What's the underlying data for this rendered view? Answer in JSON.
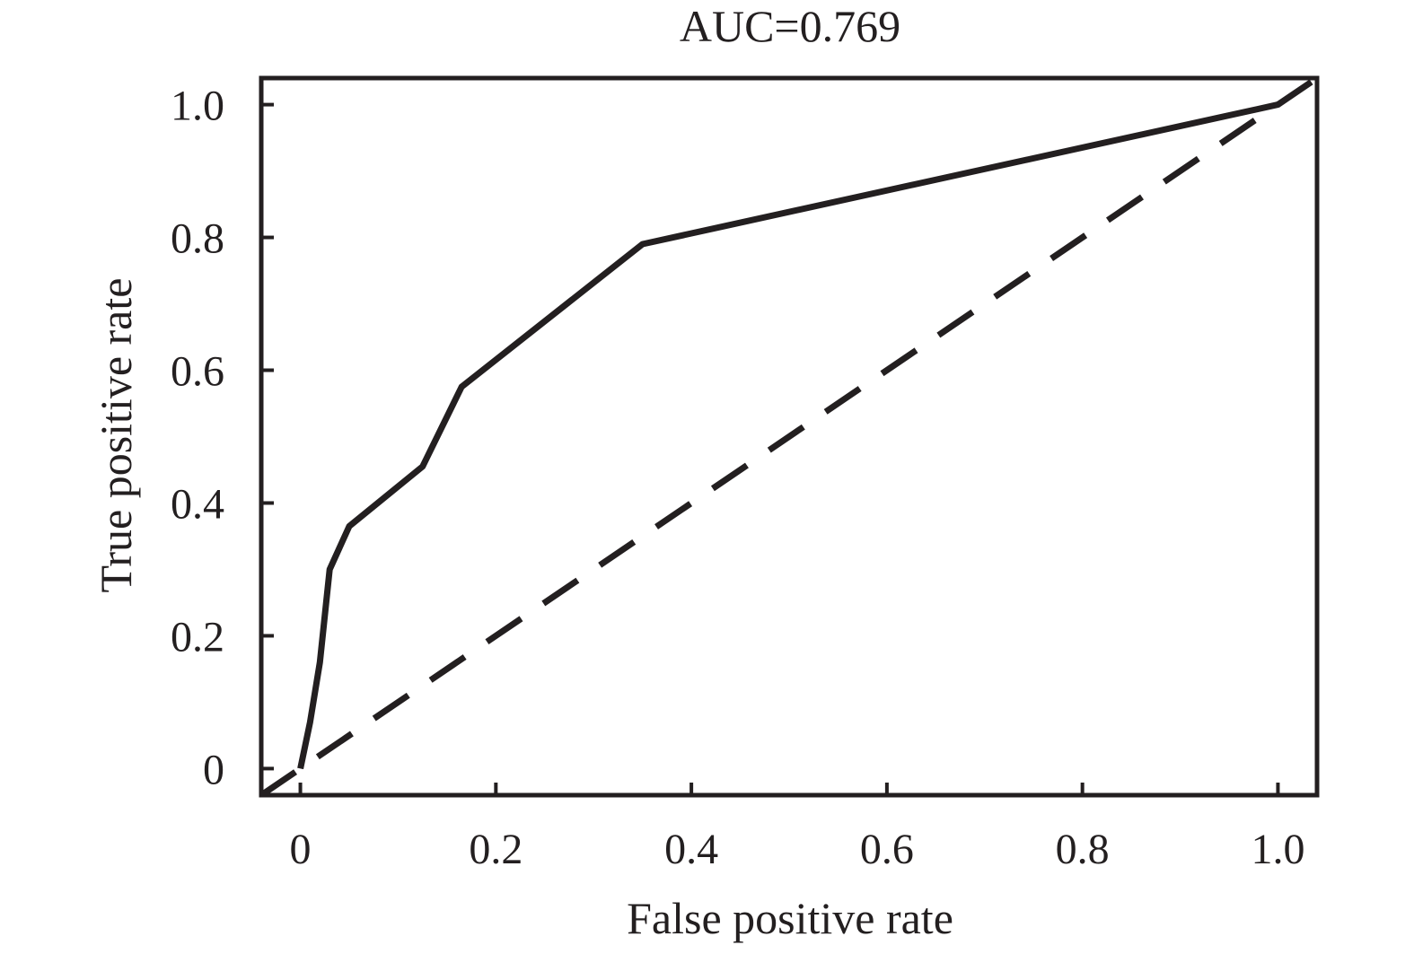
{
  "chart_data": {
    "type": "line",
    "title": "AUC=0.769",
    "xlabel": "False positive rate",
    "ylabel": "True positive rate",
    "xlim": [
      -0.04,
      1.04
    ],
    "ylim": [
      -0.04,
      1.04
    ],
    "x_ticks": [
      0,
      0.2,
      0.4,
      0.6,
      0.8,
      1.0
    ],
    "x_tick_labels": [
      "0",
      "0.2",
      "0.4",
      "0.6",
      "0.8",
      "1.0"
    ],
    "y_ticks": [
      0,
      0.2,
      0.4,
      0.6,
      0.8,
      1.0
    ],
    "y_tick_labels": [
      "0",
      "0.2",
      "0.4",
      "0.6",
      "0.8",
      "1.0"
    ],
    "grid": false,
    "legend": "none",
    "line_color": "#231f20",
    "series": [
      {
        "style": "solid",
        "x": [
          0,
          0.01,
          0.02,
          0.03,
          0.05,
          0.125,
          0.165,
          0.35,
          1.0
        ],
        "y": [
          0,
          0.07,
          0.16,
          0.3,
          0.365,
          0.455,
          0.575,
          0.79,
          1.0
        ]
      },
      {
        "style": "dashed",
        "x": [
          -0.04,
          1.04
        ],
        "y": [
          -0.04,
          1.04
        ]
      }
    ]
  }
}
